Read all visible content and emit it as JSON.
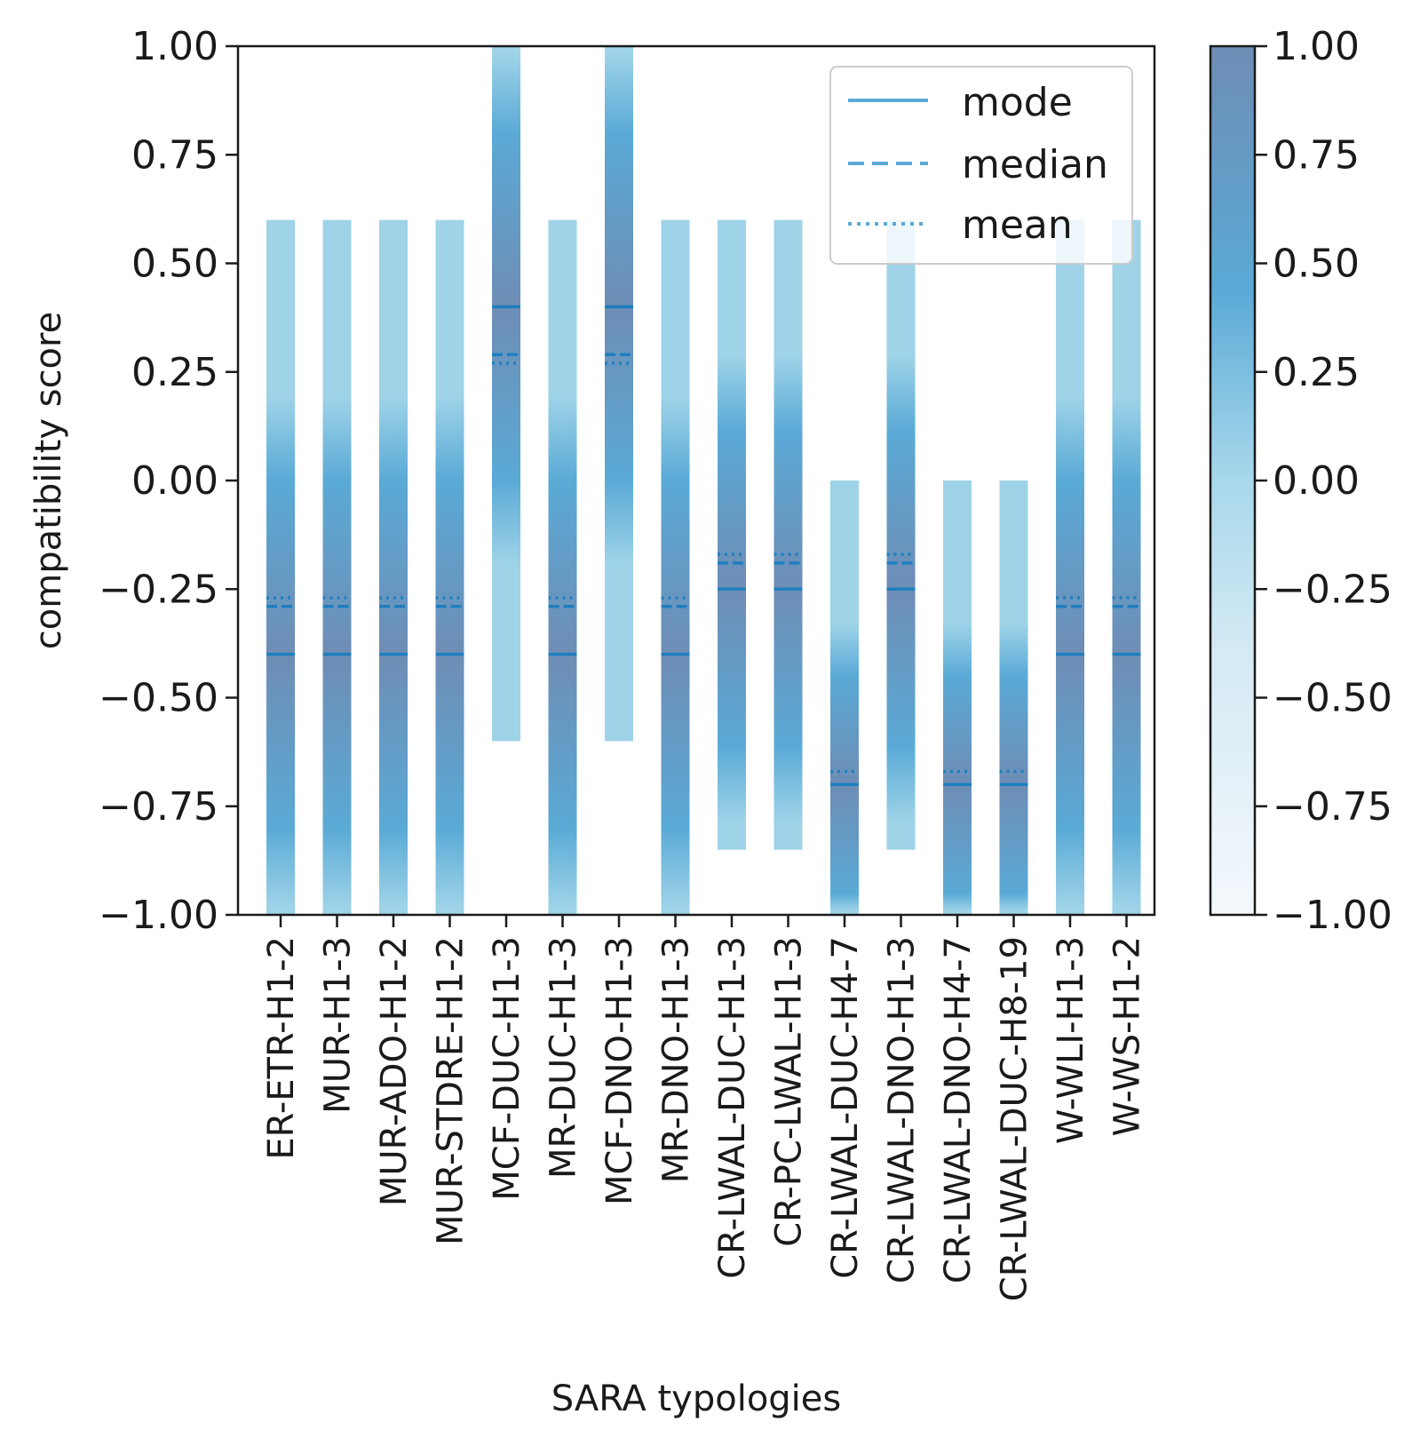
{
  "chart_data": {
    "type": "bar",
    "xlabel": "SARA typologies",
    "ylabel": "compatibility score",
    "ylim": [
      -1.0,
      1.0
    ],
    "yticks": [
      "1.00",
      "0.75",
      "0.50",
      "0.25",
      "0.00",
      "−0.25",
      "−0.50",
      "−0.75",
      "−1.00"
    ],
    "ytick_values": [
      1.0,
      0.75,
      0.5,
      0.25,
      0.0,
      -0.25,
      -0.5,
      -0.75,
      -1.0
    ],
    "categories": [
      "ER-ETR-H1-2",
      "MUR-H1-3",
      "MUR-ADO-H1-2",
      "MUR-STDRE-H1-2",
      "MCF-DUC-H1-3",
      "MR-DUC-H1-3",
      "MCF-DNO-H1-3",
      "MR-DNO-H1-3",
      "CR-LWAL-DUC-H1-3",
      "CR-PC-LWAL-H1-3",
      "CR-LWAL-DUC-H4-7",
      "CR-LWAL-DNO-H1-3",
      "CR-LWAL-DNO-H4-7",
      "CR-LWAL-DUC-H8-19",
      "W-WLI-H1-3",
      "W-WS-H1-2"
    ],
    "ranges": [
      [
        -1.0,
        0.6
      ],
      [
        -1.0,
        0.6
      ],
      [
        -1.0,
        0.6
      ],
      [
        -1.0,
        0.6
      ],
      [
        -0.6,
        1.0
      ],
      [
        -1.0,
        0.6
      ],
      [
        -0.6,
        1.0
      ],
      [
        -1.0,
        0.6
      ],
      [
        -0.85,
        0.6
      ],
      [
        -0.85,
        0.6
      ],
      [
        -1.0,
        0.0
      ],
      [
        -0.85,
        0.6
      ],
      [
        -1.0,
        0.0
      ],
      [
        -1.0,
        0.0
      ],
      [
        -1.0,
        0.6
      ],
      [
        -1.0,
        0.6
      ]
    ],
    "series": [
      {
        "name": "mode",
        "values": [
          -0.4,
          -0.4,
          -0.4,
          -0.4,
          0.4,
          -0.4,
          0.4,
          -0.4,
          -0.25,
          -0.25,
          -0.7,
          -0.25,
          -0.7,
          -0.7,
          -0.4,
          -0.4
        ]
      },
      {
        "name": "median",
        "values": [
          -0.29,
          -0.29,
          -0.29,
          -0.29,
          0.29,
          -0.29,
          0.29,
          -0.29,
          -0.19,
          -0.19,
          -0.7,
          -0.19,
          -0.7,
          -0.7,
          -0.29,
          -0.29
        ]
      },
      {
        "name": "mean",
        "values": [
          -0.27,
          -0.27,
          -0.27,
          -0.27,
          0.27,
          -0.27,
          0.27,
          -0.27,
          -0.17,
          -0.17,
          -0.67,
          -0.17,
          -0.67,
          -0.67,
          -0.27,
          -0.27
        ]
      }
    ],
    "legend": {
      "entries": [
        "mode",
        "median",
        "mean"
      ],
      "placement": "top-right"
    },
    "colorbar": {
      "range": [
        -1.0,
        1.0
      ],
      "ticks": [
        "1.00",
        "0.75",
        "0.50",
        "0.25",
        "0.00",
        "−0.25",
        "−0.50",
        "−0.75",
        "−1.00"
      ],
      "tick_values": [
        1.0,
        0.75,
        0.5,
        0.25,
        0.0,
        -0.25,
        -0.5,
        -0.75,
        -1.0
      ]
    },
    "colors": {
      "bar_light": "#9ed3e8",
      "bar_mid": "#5aaad6",
      "bar_dark": "#6e8db5",
      "line": "#1f7fbf",
      "axis": "#1a1a1a",
      "legend_border": "#cccccc"
    }
  }
}
